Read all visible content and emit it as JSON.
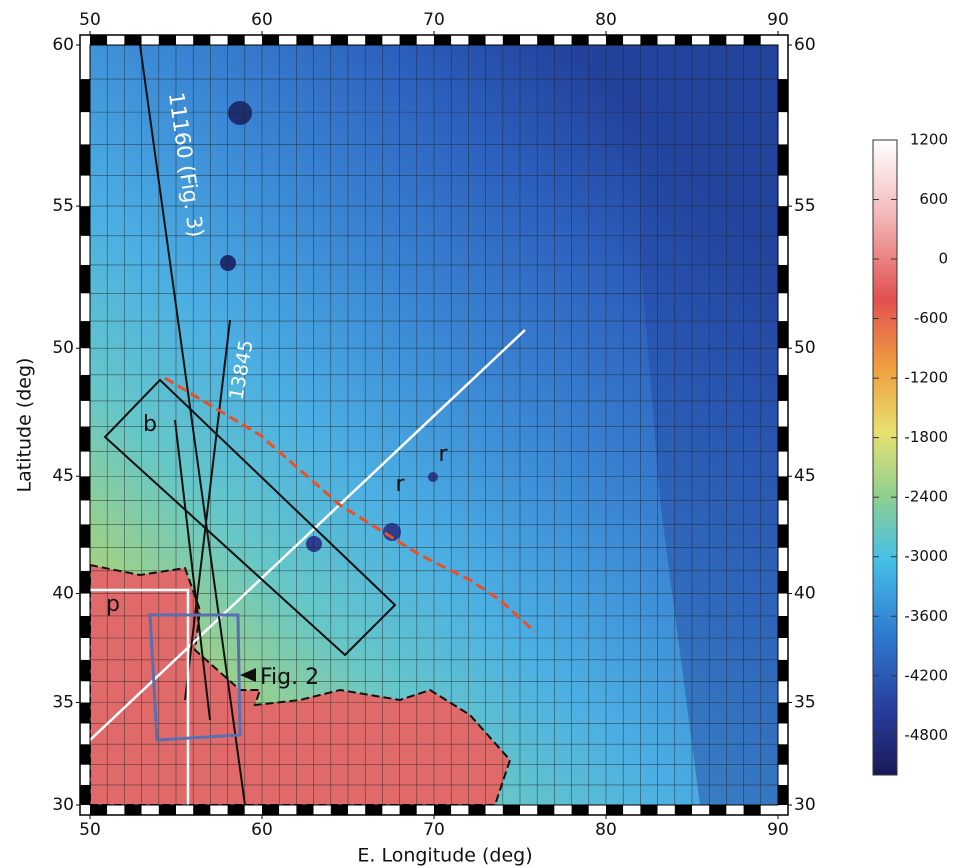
{
  "chart_data": {
    "type": "map",
    "projection": "mercator",
    "xlabel": "E. Longitude (deg)",
    "ylabel": "Latitude (deg)",
    "xlim": [
      50,
      90
    ],
    "ylim": [
      30,
      60
    ],
    "xticks": [
      50,
      60,
      70,
      80,
      90
    ],
    "yticks": [
      30,
      35,
      40,
      45,
      50,
      55,
      60
    ],
    "colorbar": {
      "lim": [
        -5200,
        1200
      ],
      "ticks": [
        1200,
        600,
        0,
        -600,
        -1200,
        -1800,
        -2400,
        -3000,
        -3600,
        -4200,
        -4800
      ]
    },
    "annotations": [
      "11160 (Fig. 3)",
      "13845",
      "b",
      "r",
      "r",
      "p",
      "Fig. 2"
    ]
  }
}
